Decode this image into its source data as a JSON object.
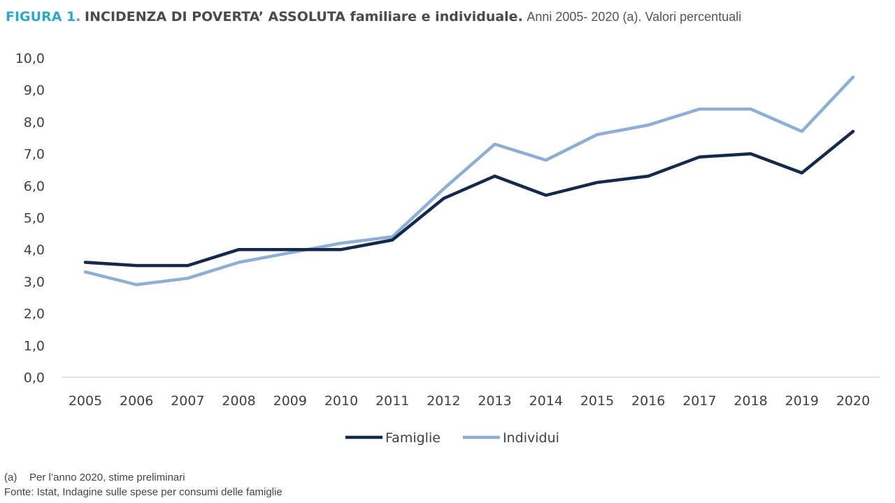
{
  "figure": {
    "label": "FIGURA 1.",
    "title": "INCIDENZA DI POVERTA’ ASSOLUTA familiare e individuale.",
    "subtitle": "Anni 2005- 2020 (a). Valori percentuali"
  },
  "notes": {
    "marker": "(a)",
    "note": "Per l’anno 2020, stime preliminari",
    "source": "Fonte: Istat, Indagine sulle spese per consumi delle famiglie"
  },
  "chart_data": {
    "type": "line",
    "x": [
      "2005",
      "2006",
      "2007",
      "2008",
      "2009",
      "2010",
      "2011",
      "2012",
      "2013",
      "2014",
      "2015",
      "2016",
      "2017",
      "2018",
      "2019",
      "2020"
    ],
    "series": [
      {
        "name": "Famiglie",
        "color": "#14294b",
        "values": [
          3.6,
          3.5,
          3.5,
          4.0,
          4.0,
          4.0,
          4.3,
          5.6,
          6.3,
          5.7,
          6.1,
          6.3,
          6.9,
          7.0,
          6.4,
          7.7
        ]
      },
      {
        "name": "Individui",
        "color": "#8eaed4",
        "values": [
          3.3,
          2.9,
          3.1,
          3.6,
          3.9,
          4.2,
          4.4,
          5.9,
          7.3,
          6.8,
          7.6,
          7.9,
          8.4,
          8.4,
          7.7,
          9.4
        ]
      }
    ],
    "ylim": [
      0,
      10
    ],
    "yticks": [
      "0,0",
      "1,0",
      "2,0",
      "3,0",
      "4,0",
      "5,0",
      "6,0",
      "7,0",
      "8,0",
      "9,0",
      "10,0"
    ],
    "grid": false,
    "legend_position": "bottom"
  }
}
